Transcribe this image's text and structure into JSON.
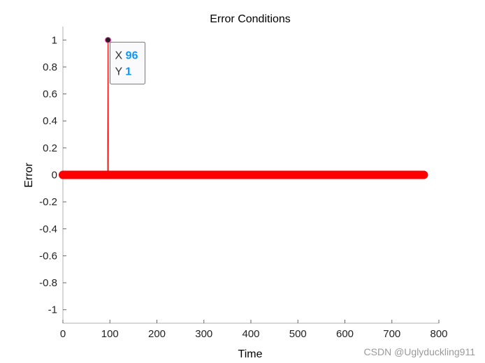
{
  "chart_data": {
    "type": "line",
    "title": "Error Conditions",
    "xlabel": "Time",
    "ylabel": "Error",
    "xlim": [
      0,
      800
    ],
    "ylim": [
      -1.1,
      1.1
    ],
    "xticks": [
      0,
      100,
      200,
      300,
      400,
      500,
      600,
      700,
      800
    ],
    "yticks": [
      -1,
      -0.8,
      -0.6,
      -0.4,
      -0.2,
      0,
      0.2,
      0.4,
      0.6,
      0.8,
      1
    ],
    "grid": false,
    "series": [
      {
        "x_start": 0,
        "x_end": 768,
        "x_step": 1,
        "default_y": 0,
        "nonzero_points": [
          {
            "x": 96,
            "y": 1
          }
        ],
        "color": "#ff0000",
        "marker": "circle"
      }
    ],
    "datatip": {
      "x_label": "X",
      "x_value": "96",
      "y_label": "Y",
      "y_value": "1",
      "value_color": "#0a96ff"
    }
  },
  "watermark": "CSDN @Uglyduckling911"
}
